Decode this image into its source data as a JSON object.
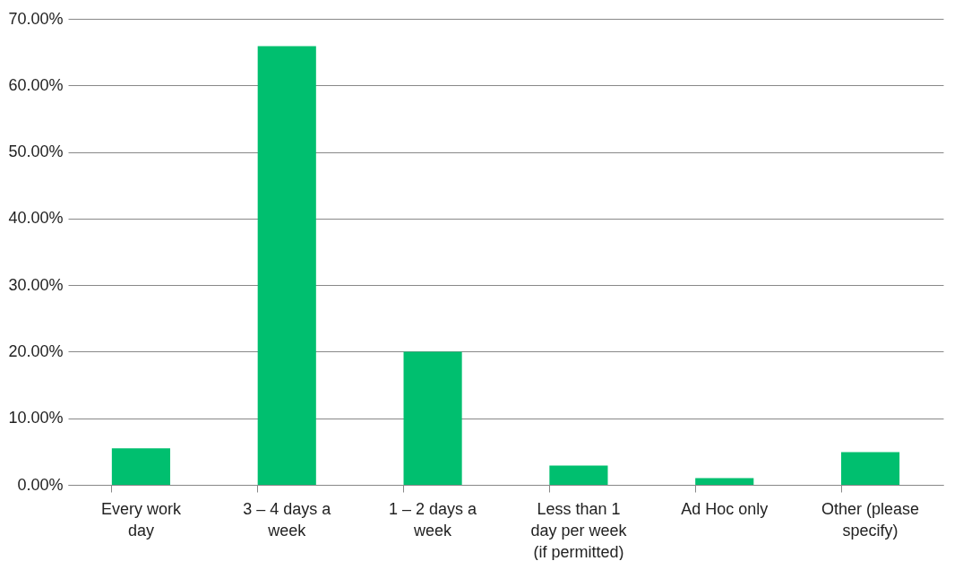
{
  "chart_data": {
    "type": "bar",
    "categories": [
      "Every work day",
      "3 – 4 days a week",
      "1 – 2 days a week",
      "Less than 1 day per week (if permitted)",
      "Ad Hoc only",
      "Other (please specify)"
    ],
    "values": [
      5.5,
      65.9,
      20,
      2.9,
      1,
      4.9
    ],
    "color": "#00bf6f",
    "ylim": [
      0,
      70
    ],
    "yticks": [
      {
        "value": 0,
        "label": "0.00%"
      },
      {
        "value": 10,
        "label": "10.00%"
      },
      {
        "value": 20,
        "label": "20.00%"
      },
      {
        "value": 30,
        "label": "30.00%"
      },
      {
        "value": 40,
        "label": "40.00%"
      },
      {
        "value": 50,
        "label": "50.00%"
      },
      {
        "value": 60,
        "label": "60.00%"
      },
      {
        "value": 70,
        "label": "70.00%"
      }
    ],
    "grid": "y"
  }
}
